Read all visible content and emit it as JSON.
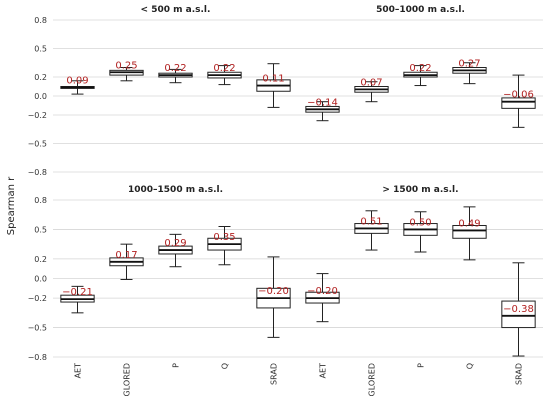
{
  "figure": {
    "ylabel": "Spearman r"
  },
  "chart_data": {
    "type": "boxplot",
    "categories": [
      "AET",
      "GLORED",
      "P",
      "Q",
      "SRAD"
    ],
    "ylabel": "Spearman r",
    "yticks": [
      0.8,
      0.5,
      0.2,
      0.0,
      -0.2,
      -0.5,
      -0.8
    ],
    "yticklabels": [
      "0.8",
      "0.5",
      "0.2",
      "0.0",
      "−0.2",
      "−0.5",
      "−0.8"
    ],
    "ylim": [
      -0.8,
      0.8
    ],
    "grid": true,
    "panels": [
      {
        "title": "< 500 m a.s.l.",
        "boxes": [
          {
            "category": "AET",
            "median": 0.09,
            "q1": 0.08,
            "q3": 0.1,
            "whisker_low": 0.02,
            "whisker_high": 0.16,
            "label": "0.09"
          },
          {
            "category": "GLORED",
            "median": 0.25,
            "q1": 0.22,
            "q3": 0.27,
            "whisker_low": 0.16,
            "whisker_high": 0.3,
            "label": "0.25"
          },
          {
            "category": "P",
            "median": 0.22,
            "q1": 0.2,
            "q3": 0.24,
            "whisker_low": 0.14,
            "whisker_high": 0.28,
            "label": "0.22"
          },
          {
            "category": "Q",
            "median": 0.22,
            "q1": 0.19,
            "q3": 0.25,
            "whisker_low": 0.12,
            "whisker_high": 0.32,
            "label": "0.22"
          },
          {
            "category": "SRAD",
            "median": 0.11,
            "q1": 0.05,
            "q3": 0.17,
            "whisker_low": -0.12,
            "whisker_high": 0.34,
            "label": "0.11"
          }
        ]
      },
      {
        "title": "500–1000 m a.s.l.",
        "boxes": [
          {
            "category": "AET",
            "median": -0.14,
            "q1": -0.17,
            "q3": -0.11,
            "whisker_low": -0.26,
            "whisker_high": -0.06,
            "label": "−0.14"
          },
          {
            "category": "GLORED",
            "median": 0.07,
            "q1": 0.04,
            "q3": 0.1,
            "whisker_low": -0.06,
            "whisker_high": 0.15,
            "label": "0.07"
          },
          {
            "category": "P",
            "median": 0.22,
            "q1": 0.2,
            "q3": 0.25,
            "whisker_low": 0.11,
            "whisker_high": 0.32,
            "label": "0.22"
          },
          {
            "category": "Q",
            "median": 0.27,
            "q1": 0.24,
            "q3": 0.3,
            "whisker_low": 0.13,
            "whisker_high": 0.35,
            "label": "0.27"
          },
          {
            "category": "SRAD",
            "median": -0.06,
            "q1": -0.13,
            "q3": -0.02,
            "whisker_low": -0.33,
            "whisker_high": 0.22,
            "label": "−0.06"
          }
        ]
      },
      {
        "title": "1000–1500 m a.s.l.",
        "boxes": [
          {
            "category": "AET",
            "median": -0.21,
            "q1": -0.24,
            "q3": -0.17,
            "whisker_low": -0.35,
            "whisker_high": -0.08,
            "label": "−0.21"
          },
          {
            "category": "GLORED",
            "median": 0.17,
            "q1": 0.13,
            "q3": 0.21,
            "whisker_low": -0.01,
            "whisker_high": 0.35,
            "label": "0.17"
          },
          {
            "category": "P",
            "median": 0.29,
            "q1": 0.25,
            "q3": 0.33,
            "whisker_low": 0.12,
            "whisker_high": 0.45,
            "label": "0.29"
          },
          {
            "category": "Q",
            "median": 0.35,
            "q1": 0.29,
            "q3": 0.41,
            "whisker_low": 0.14,
            "whisker_high": 0.53,
            "label": "0.35"
          },
          {
            "category": "SRAD",
            "median": -0.2,
            "q1": -0.3,
            "q3": -0.1,
            "whisker_low": -0.6,
            "whisker_high": 0.22,
            "label": "−0.20"
          }
        ]
      },
      {
        "title": "> 1500 m a.s.l.",
        "boxes": [
          {
            "category": "AET",
            "median": -0.2,
            "q1": -0.25,
            "q3": -0.14,
            "whisker_low": -0.44,
            "whisker_high": 0.05,
            "label": "−0.20"
          },
          {
            "category": "GLORED",
            "median": 0.51,
            "q1": 0.46,
            "q3": 0.56,
            "whisker_low": 0.29,
            "whisker_high": 0.69,
            "label": "0.51"
          },
          {
            "category": "P",
            "median": 0.5,
            "q1": 0.44,
            "q3": 0.56,
            "whisker_low": 0.27,
            "whisker_high": 0.68,
            "label": "0.50"
          },
          {
            "category": "Q",
            "median": 0.49,
            "q1": 0.41,
            "q3": 0.54,
            "whisker_low": 0.19,
            "whisker_high": 0.73,
            "label": "0.49"
          },
          {
            "category": "SRAD",
            "median": -0.38,
            "q1": -0.5,
            "q3": -0.23,
            "whisker_low": -0.79,
            "whisker_high": 0.16,
            "label": "−0.38"
          }
        ]
      }
    ]
  }
}
